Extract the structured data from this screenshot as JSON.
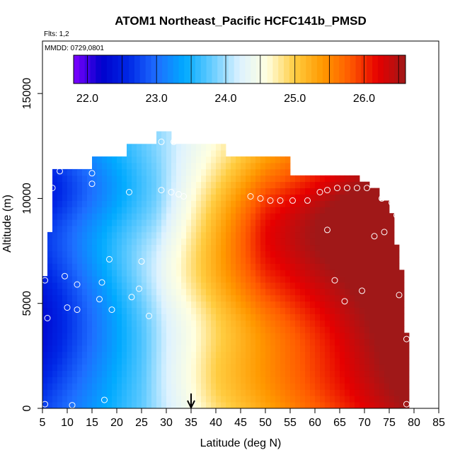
{
  "chart_data": {
    "type": "heatmap",
    "title": "ATOM1 Northeast_Pacific HCFC141b_PMSD",
    "flights_label": "Flts: 1,2",
    "dates_label": "MMDD: 0729,0801",
    "xlabel": "Latitude (deg N)",
    "ylabel": "Altitude (m)",
    "xlim": [
      5,
      85
    ],
    "ylim": [
      0,
      17500
    ],
    "x_ticks": [
      "5",
      "10",
      "15",
      "20",
      "25",
      "30",
      "35",
      "40",
      "45",
      "50",
      "55",
      "60",
      "65",
      "70",
      "75",
      "80",
      "85"
    ],
    "y_ticks": [
      "0",
      "5000",
      "10000",
      "15000"
    ],
    "colorbar": {
      "range": [
        21.8,
        26.6
      ],
      "ticks": [
        "22.0",
        "23.0",
        "24.0",
        "25.0",
        "26.0"
      ],
      "colors": [
        "#7f00ff",
        "#0000cc",
        "#0028e6",
        "#1e6eff",
        "#00aaff",
        "#66ccff",
        "#ddf2ff",
        "#ffffe0",
        "#ffcc40",
        "#ff9900",
        "#ff5a00",
        "#e60000",
        "#a01818"
      ]
    },
    "marker_latitude": 35,
    "grid": false,
    "legend": "none",
    "description_model": "Value field v(lat, alt): low values (~22-23.5) at low latitudes/low altitudes and in upper-level band near lat 10-25, high values (~25.5-26.3) at lat 45-75 between 7-11 km.",
    "samples": [
      {
        "lat": 5.5,
        "alt": 200
      },
      {
        "lat": 11,
        "alt": 150
      },
      {
        "lat": 17.5,
        "alt": 400
      },
      {
        "lat": 6,
        "alt": 4300
      },
      {
        "lat": 10,
        "alt": 4800
      },
      {
        "lat": 12,
        "alt": 4700
      },
      {
        "lat": 19,
        "alt": 4700
      },
      {
        "lat": 23,
        "alt": 5300
      },
      {
        "lat": 26.5,
        "alt": 4400
      },
      {
        "lat": 5.5,
        "alt": 6100
      },
      {
        "lat": 9.5,
        "alt": 6300
      },
      {
        "lat": 12,
        "alt": 5900
      },
      {
        "lat": 16.5,
        "alt": 5200
      },
      {
        "lat": 17,
        "alt": 6000
      },
      {
        "lat": 24.5,
        "alt": 5700
      },
      {
        "lat": 18.5,
        "alt": 7100
      },
      {
        "lat": 25,
        "alt": 7000
      },
      {
        "lat": 7,
        "alt": 10500
      },
      {
        "lat": 8.5,
        "alt": 11300
      },
      {
        "lat": 15,
        "alt": 11200
      },
      {
        "lat": 15,
        "alt": 10700
      },
      {
        "lat": 22.5,
        "alt": 10300
      },
      {
        "lat": 29,
        "alt": 10400
      },
      {
        "lat": 31,
        "alt": 10300
      },
      {
        "lat": 32.5,
        "alt": 10200
      },
      {
        "lat": 33.5,
        "alt": 10100
      },
      {
        "lat": 29,
        "alt": 12700
      },
      {
        "lat": 31.5,
        "alt": 12700
      },
      {
        "lat": 47,
        "alt": 10100
      },
      {
        "lat": 49,
        "alt": 10000
      },
      {
        "lat": 51,
        "alt": 9900
      },
      {
        "lat": 53,
        "alt": 9900
      },
      {
        "lat": 55.5,
        "alt": 9900
      },
      {
        "lat": 58.5,
        "alt": 9900
      },
      {
        "lat": 61,
        "alt": 10300
      },
      {
        "lat": 62.5,
        "alt": 10400
      },
      {
        "lat": 64.5,
        "alt": 10500
      },
      {
        "lat": 66.5,
        "alt": 10500
      },
      {
        "lat": 68.5,
        "alt": 10500
      },
      {
        "lat": 70.5,
        "alt": 10500
      },
      {
        "lat": 73.5,
        "alt": 10000
      },
      {
        "lat": 75.5,
        "alt": 9800
      },
      {
        "lat": 76.5,
        "alt": 9200
      },
      {
        "lat": 74,
        "alt": 8400
      },
      {
        "lat": 72,
        "alt": 8200
      },
      {
        "lat": 62.5,
        "alt": 8500
      },
      {
        "lat": 64,
        "alt": 6100
      },
      {
        "lat": 66,
        "alt": 5100
      },
      {
        "lat": 69.5,
        "alt": 5600
      },
      {
        "lat": 77,
        "alt": 5400
      },
      {
        "lat": 78.5,
        "alt": 3300
      },
      {
        "lat": 78.5,
        "alt": 200
      }
    ]
  }
}
